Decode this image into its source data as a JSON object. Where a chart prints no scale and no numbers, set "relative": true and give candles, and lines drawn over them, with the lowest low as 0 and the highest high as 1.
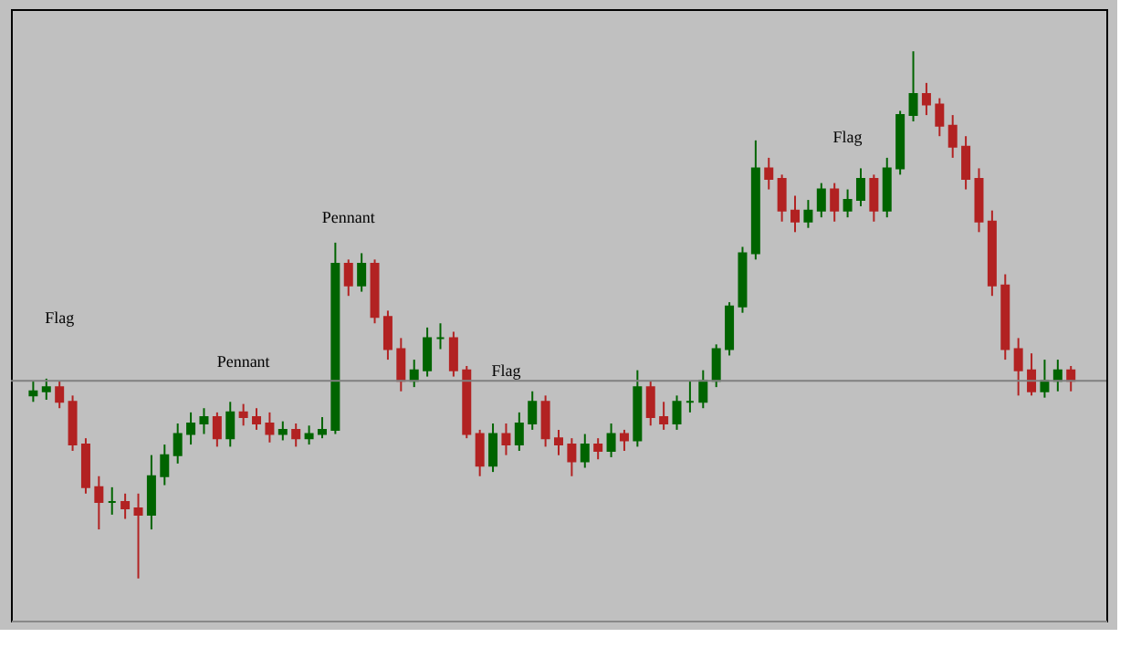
{
  "chart_data": {
    "type": "candlestick",
    "relative": true,
    "grid": false,
    "categories": [
      null,
      null,
      null,
      null,
      null,
      null,
      null,
      null,
      null,
      null,
      null,
      null,
      null,
      null,
      null,
      null,
      null,
      null,
      null,
      null,
      null,
      null,
      null,
      null,
      null,
      null,
      null,
      null,
      null,
      null,
      null,
      null,
      null,
      null,
      null,
      null,
      null,
      null,
      null,
      null,
      null,
      null,
      null,
      null,
      null,
      null,
      null,
      null,
      null,
      null,
      null,
      null,
      null,
      null,
      null,
      null,
      null,
      null,
      null,
      null,
      null,
      null,
      null,
      null,
      null,
      null,
      null,
      null,
      null,
      null,
      null,
      null,
      null,
      null,
      null,
      null,
      null,
      null,
      null,
      null
    ],
    "ohlc": [
      [
        0.347,
        0.375,
        0.335,
        0.355
      ],
      [
        0.355,
        0.379,
        0.339,
        0.363
      ],
      [
        0.363,
        0.375,
        0.323,
        0.335
      ],
      [
        0.335,
        0.347,
        0.242,
        0.254
      ],
      [
        0.254,
        0.266,
        0.161,
        0.173
      ],
      [
        0.173,
        0.194,
        0.093,
        0.145
      ],
      [
        0.145,
        0.173,
        0.121,
        0.145
      ],
      [
        0.145,
        0.161,
        0.113,
        0.133
      ],
      [
        0.133,
        0.161,
        0,
        0.121
      ],
      [
        0.121,
        0.234,
        0.093,
        0.194
      ],
      [
        0.194,
        0.254,
        0.177,
        0.234
      ],
      [
        0.234,
        0.294,
        0.218,
        0.274
      ],
      [
        0.274,
        0.315,
        0.254,
        0.294
      ],
      [
        0.294,
        0.323,
        0.274,
        0.306
      ],
      [
        0.306,
        0.315,
        0.25,
        0.266
      ],
      [
        0.266,
        0.335,
        0.25,
        0.315
      ],
      [
        0.315,
        0.331,
        0.29,
        0.306
      ],
      [
        0.306,
        0.323,
        0.282,
        0.294
      ],
      [
        0.294,
        0.315,
        0.258,
        0.274
      ],
      [
        0.274,
        0.298,
        0.262,
        0.282
      ],
      [
        0.282,
        0.294,
        0.25,
        0.266
      ],
      [
        0.266,
        0.29,
        0.254,
        0.274
      ],
      [
        0.274,
        0.306,
        0.266,
        0.282
      ],
      [
        0.282,
        0.637,
        0.274,
        0.597
      ],
      [
        0.597,
        0.605,
        0.536,
        0.556
      ],
      [
        0.556,
        0.617,
        0.544,
        0.597
      ],
      [
        0.597,
        0.605,
        0.484,
        0.496
      ],
      [
        0.496,
        0.508,
        0.415,
        0.435
      ],
      [
        0.435,
        0.456,
        0.355,
        0.375
      ],
      [
        0.375,
        0.415,
        0.363,
        0.395
      ],
      [
        0.395,
        0.476,
        0.383,
        0.456
      ],
      [
        0.456,
        0.484,
        0.435,
        0.456
      ],
      [
        0.456,
        0.468,
        0.383,
        0.395
      ],
      [
        0.395,
        0.403,
        0.266,
        0.274
      ],
      [
        0.274,
        0.282,
        0.194,
        0.214
      ],
      [
        0.214,
        0.294,
        0.202,
        0.274
      ],
      [
        0.274,
        0.294,
        0.234,
        0.254
      ],
      [
        0.254,
        0.315,
        0.242,
        0.294
      ],
      [
        0.294,
        0.355,
        0.282,
        0.335
      ],
      [
        0.335,
        0.347,
        0.25,
        0.266
      ],
      [
        0.266,
        0.282,
        0.234,
        0.254
      ],
      [
        0.254,
        0.266,
        0.194,
        0.222
      ],
      [
        0.222,
        0.274,
        0.21,
        0.254
      ],
      [
        0.254,
        0.266,
        0.226,
        0.242
      ],
      [
        0.242,
        0.294,
        0.23,
        0.274
      ],
      [
        0.274,
        0.282,
        0.242,
        0.262
      ],
      [
        0.262,
        0.395,
        0.25,
        0.363
      ],
      [
        0.363,
        0.375,
        0.29,
        0.306
      ],
      [
        0.306,
        0.335,
        0.282,
        0.294
      ],
      [
        0.294,
        0.347,
        0.282,
        0.335
      ],
      [
        0.335,
        0.375,
        0.315,
        0.335
      ],
      [
        0.335,
        0.395,
        0.323,
        0.375
      ],
      [
        0.375,
        0.444,
        0.363,
        0.435
      ],
      [
        0.435,
        0.524,
        0.423,
        0.516
      ],
      [
        0.516,
        0.629,
        0.504,
        0.617
      ],
      [
        0.617,
        0.831,
        0.605,
        0.778
      ],
      [
        0.778,
        0.798,
        0.738,
        0.758
      ],
      [
        0.758,
        0.766,
        0.677,
        0.698
      ],
      [
        0.698,
        0.726,
        0.657,
        0.677
      ],
      [
        0.677,
        0.718,
        0.665,
        0.698
      ],
      [
        0.698,
        0.75,
        0.685,
        0.738
      ],
      [
        0.738,
        0.75,
        0.677,
        0.698
      ],
      [
        0.698,
        0.738,
        0.685,
        0.718
      ],
      [
        0.718,
        0.778,
        0.706,
        0.758
      ],
      [
        0.758,
        0.766,
        0.677,
        0.698
      ],
      [
        0.698,
        0.798,
        0.685,
        0.778
      ],
      [
        0.778,
        0.887,
        0.766,
        0.879
      ],
      [
        0.879,
        1,
        0.867,
        0.919
      ],
      [
        0.919,
        0.94,
        0.879,
        0.899
      ],
      [
        0.899,
        0.911,
        0.839,
        0.859
      ],
      [
        0.859,
        0.879,
        0.798,
        0.819
      ],
      [
        0.819,
        0.839,
        0.738,
        0.758
      ],
      [
        0.758,
        0.778,
        0.657,
        0.677
      ],
      [
        0.677,
        0.698,
        0.536,
        0.556
      ],
      [
        0.556,
        0.577,
        0.415,
        0.435
      ],
      [
        0.435,
        0.456,
        0.347,
        0.395
      ],
      [
        0.395,
        0.427,
        0.347,
        0.355
      ],
      [
        0.355,
        0.415,
        0.343,
        0.375
      ],
      [
        0.375,
        0.415,
        0.355,
        0.395
      ],
      [
        0.395,
        0.403,
        0.355,
        0.375
      ]
    ],
    "ref_lines": [
      {
        "axis": "y",
        "value": 0.375,
        "color": "#808080"
      }
    ],
    "annotations": [
      "Flag",
      "Pennant",
      "Pennant",
      "Flag",
      "Flag"
    ]
  }
}
